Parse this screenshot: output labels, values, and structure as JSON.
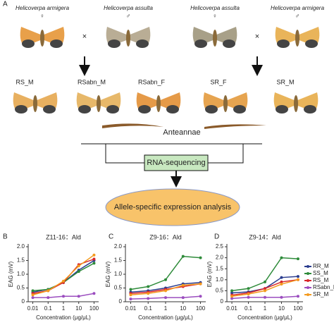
{
  "panel_a": {
    "panel_label": "A",
    "parents": [
      {
        "species": "Helicoverpa armigera",
        "sex": "♀"
      },
      {
        "species": "Helicoverpa assulta",
        "sex": "♂"
      },
      {
        "species": "Helicoverpa assulta",
        "sex": "♀"
      },
      {
        "species": "Helicoverpa armigera",
        "sex": "♂"
      }
    ],
    "cross_symbols": [
      "×",
      "×"
    ],
    "offspring": [
      "RS_M",
      "RSabn_M",
      "RSabn_F",
      "SR_F",
      "SR_M"
    ],
    "tissue": "Anteannae",
    "method": "RNA-sequencing",
    "analysis": "Allele-specific expression analysis"
  },
  "chart_data": [
    {
      "type": "line",
      "panel_label": "B",
      "title": "Z11-16：Ald",
      "xlabel": "Concentration (μg/μL)",
      "ylabel": "EAG (mV)",
      "x": [
        0.01,
        0.1,
        1,
        10,
        100
      ],
      "xscale": "log",
      "xlim": [
        0.005,
        200
      ],
      "xticks": [
        0.01,
        0.1,
        1,
        10,
        100
      ],
      "ylim": [
        0,
        2
      ],
      "yticks": [
        0,
        0.5,
        {
          "value": 1,
          "label": "1.0"
        },
        1.5,
        {
          "value": 2,
          "label": "2.0"
        }
      ],
      "legend": false,
      "series": [
        {
          "name": "RR_M",
          "color": "#2b3d8f",
          "values": [
            0.35,
            0.45,
            0.7,
            1.15,
            1.5
          ]
        },
        {
          "name": "SS_M",
          "color": "#2e8b3a",
          "values": [
            0.4,
            0.45,
            0.7,
            1.1,
            1.4
          ]
        },
        {
          "name": "RS_M",
          "color": "#d8262b",
          "values": [
            0.3,
            0.4,
            0.7,
            1.35,
            1.55
          ]
        },
        {
          "name": "RSabn_M",
          "color": "#9b4dbf",
          "values": [
            0.15,
            0.15,
            0.2,
            0.2,
            0.3
          ]
        },
        {
          "name": "SR_M",
          "color": "#f39a1e",
          "values": [
            0.25,
            0.4,
            0.75,
            1.3,
            1.7
          ]
        }
      ]
    },
    {
      "type": "line",
      "panel_label": "C",
      "title": "Z9-16：Ald",
      "xlabel": "Concentration (μg/μL)",
      "ylabel": "EAG (mV)",
      "x": [
        0.01,
        0.1,
        1,
        10,
        100
      ],
      "xscale": "log",
      "xlim": [
        0.005,
        200
      ],
      "xticks": [
        0.01,
        0.1,
        1,
        10,
        100
      ],
      "ylim": [
        0,
        2
      ],
      "yticks": [
        0,
        0.5,
        {
          "value": 1,
          "label": "1.0"
        },
        1.5,
        {
          "value": 2,
          "label": "2.0"
        }
      ],
      "legend": false,
      "series": [
        {
          "name": "RR_M",
          "color": "#2b3d8f",
          "values": [
            0.35,
            0.4,
            0.5,
            0.65,
            0.7
          ]
        },
        {
          "name": "SS_M",
          "color": "#2e8b3a",
          "values": [
            0.45,
            0.55,
            0.8,
            1.65,
            1.6
          ]
        },
        {
          "name": "RS_M",
          "color": "#d8262b",
          "values": [
            0.3,
            0.35,
            0.45,
            0.55,
            0.65
          ]
        },
        {
          "name": "RSabn_M",
          "color": "#9b4dbf",
          "values": [
            0.1,
            0.12,
            0.15,
            0.15,
            0.2
          ]
        },
        {
          "name": "SR_M",
          "color": "#f39a1e",
          "values": [
            0.25,
            0.3,
            0.4,
            0.6,
            0.65
          ]
        }
      ]
    },
    {
      "type": "line",
      "panel_label": "D",
      "title": "Z9-14：Ald",
      "xlabel": "Concentration (μg/μL)",
      "ylabel": "EAG (mV)",
      "x": [
        0.01,
        0.1,
        1,
        10,
        100
      ],
      "xscale": "log",
      "xlim": [
        0.005,
        200
      ],
      "xticks": [
        0.01,
        0.1,
        1,
        10,
        100
      ],
      "ylim": [
        0,
        2.5
      ],
      "yticks": [
        0,
        0.5,
        {
          "value": 1,
          "label": "1.0"
        },
        1.5,
        {
          "value": 2,
          "label": "2.0"
        },
        2.5
      ],
      "legend": true,
      "series": [
        {
          "name": "RR_M",
          "color": "#2b3d8f",
          "values": [
            0.4,
            0.45,
            0.6,
            1.1,
            1.15
          ]
        },
        {
          "name": "SS_M",
          "color": "#2e8b3a",
          "values": [
            0.5,
            0.6,
            0.9,
            2.0,
            1.95
          ]
        },
        {
          "name": "RS_M",
          "color": "#d8262b",
          "values": [
            0.3,
            0.4,
            0.6,
            0.9,
            1.0
          ]
        },
        {
          "name": "RSabn_M",
          "color": "#9b4dbf",
          "values": [
            0.15,
            0.2,
            0.2,
            0.2,
            0.25
          ]
        },
        {
          "name": "SR_M",
          "color": "#f39a1e",
          "values": [
            0.25,
            0.35,
            0.5,
            0.8,
            1.0
          ]
        }
      ]
    }
  ]
}
